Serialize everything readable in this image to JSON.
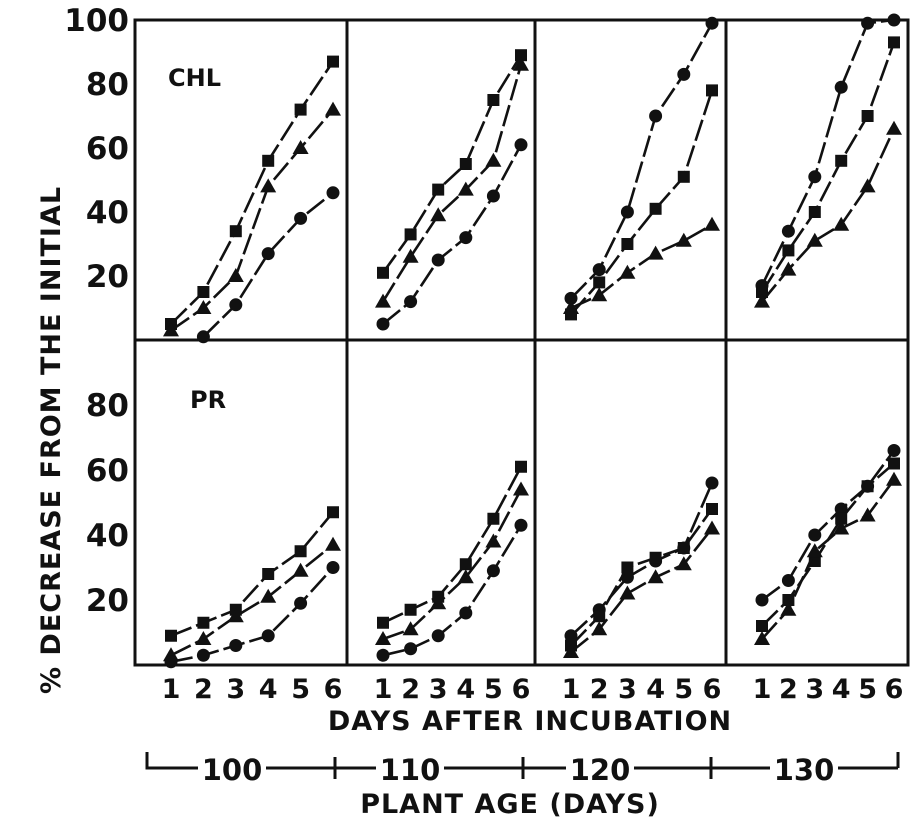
{
  "chart_data": {
    "type": "line",
    "y_axis_label": "% DECREASE FROM THE INITIAL",
    "x_axis_label": "DAYS AFTER INCUBATION",
    "group_axis_label": "PLANT AGE (DAYS)",
    "x_ticks": [
      "1",
      "2",
      "3",
      "4",
      "5",
      "6"
    ],
    "age_groups": [
      "100",
      "110",
      "120",
      "130"
    ],
    "rows": [
      {
        "label": "CHL",
        "ylim": [
          0,
          100
        ],
        "y_ticks": [
          "20",
          "40",
          "60",
          "80",
          "100"
        ],
        "panels": [
          {
            "age": "100",
            "series": [
              {
                "marker": "square",
                "x": [
                  1,
                  2,
                  3,
                  4,
                  5,
                  6
                ],
                "y": [
                  5,
                  15,
                  34,
                  56,
                  72,
                  87
                ]
              },
              {
                "marker": "triangle",
                "x": [
                  1,
                  2,
                  3,
                  4,
                  5,
                  6
                ],
                "y": [
                  3,
                  10,
                  20,
                  48,
                  60,
                  72
                ]
              },
              {
                "marker": "circle",
                "x": [
                  2,
                  3,
                  4,
                  5,
                  6
                ],
                "y": [
                  1,
                  11,
                  27,
                  38,
                  46
                ]
              }
            ]
          },
          {
            "age": "110",
            "series": [
              {
                "marker": "square",
                "x": [
                  1,
                  2,
                  3,
                  4,
                  5,
                  6
                ],
                "y": [
                  21,
                  33,
                  47,
                  55,
                  75,
                  89
                ]
              },
              {
                "marker": "triangle",
                "x": [
                  1,
                  2,
                  3,
                  4,
                  5,
                  6
                ],
                "y": [
                  12,
                  26,
                  39,
                  47,
                  56,
                  86
                ]
              },
              {
                "marker": "circle",
                "x": [
                  1,
                  2,
                  3,
                  4,
                  5,
                  6
                ],
                "y": [
                  5,
                  12,
                  25,
                  32,
                  45,
                  61
                ]
              }
            ]
          },
          {
            "age": "120",
            "series": [
              {
                "marker": "circle",
                "x": [
                  1,
                  2,
                  3,
                  4,
                  5,
                  6
                ],
                "y": [
                  13,
                  22,
                  40,
                  70,
                  83,
                  99
                ]
              },
              {
                "marker": "square",
                "x": [
                  1,
                  2,
                  3,
                  4,
                  5,
                  6
                ],
                "y": [
                  8,
                  18,
                  30,
                  41,
                  51,
                  78
                ]
              },
              {
                "marker": "triangle",
                "x": [
                  1,
                  2,
                  3,
                  4,
                  5,
                  6
                ],
                "y": [
                  10,
                  14,
                  21,
                  27,
                  31,
                  36
                ]
              }
            ]
          },
          {
            "age": "130",
            "series": [
              {
                "marker": "circle",
                "x": [
                  1,
                  2,
                  3,
                  4,
                  5,
                  6
                ],
                "y": [
                  17,
                  34,
                  51,
                  79,
                  99,
                  100
                ]
              },
              {
                "marker": "square",
                "x": [
                  1,
                  2,
                  3,
                  4,
                  5,
                  6
                ],
                "y": [
                  15,
                  28,
                  40,
                  56,
                  70,
                  93
                ]
              },
              {
                "marker": "triangle",
                "x": [
                  1,
                  2,
                  3,
                  4,
                  5,
                  6
                ],
                "y": [
                  12,
                  22,
                  31,
                  36,
                  48,
                  66
                ]
              }
            ]
          }
        ]
      },
      {
        "label": "PR",
        "ylim": [
          0,
          100
        ],
        "y_ticks": [
          "20",
          "40",
          "60",
          "80"
        ],
        "panels": [
          {
            "age": "100",
            "series": [
              {
                "marker": "square",
                "x": [
                  1,
                  2,
                  3,
                  4,
                  5,
                  6
                ],
                "y": [
                  9,
                  13,
                  17,
                  28,
                  35,
                  47
                ]
              },
              {
                "marker": "triangle",
                "x": [
                  1,
                  2,
                  3,
                  4,
                  5,
                  6
                ],
                "y": [
                  3,
                  8,
                  15,
                  21,
                  29,
                  37
                ]
              },
              {
                "marker": "circle",
                "x": [
                  1,
                  2,
                  3,
                  4,
                  5,
                  6
                ],
                "y": [
                  1,
                  3,
                  6,
                  9,
                  19,
                  30
                ]
              }
            ]
          },
          {
            "age": "110",
            "series": [
              {
                "marker": "square",
                "x": [
                  1,
                  2,
                  3,
                  4,
                  5,
                  6
                ],
                "y": [
                  13,
                  17,
                  21,
                  31,
                  45,
                  61
                ]
              },
              {
                "marker": "triangle",
                "x": [
                  1,
                  2,
                  3,
                  4,
                  5,
                  6
                ],
                "y": [
                  8,
                  11,
                  19,
                  27,
                  38,
                  54
                ]
              },
              {
                "marker": "circle",
                "x": [
                  1,
                  2,
                  3,
                  4,
                  5,
                  6
                ],
                "y": [
                  3,
                  5,
                  9,
                  16,
                  29,
                  43
                ]
              }
            ]
          },
          {
            "age": "120",
            "series": [
              {
                "marker": "circle",
                "x": [
                  1,
                  2,
                  3,
                  4,
                  5,
                  6
                ],
                "y": [
                  9,
                  17,
                  27,
                  32,
                  36,
                  56
                ]
              },
              {
                "marker": "square",
                "x": [
                  1,
                  2,
                  3,
                  4,
                  5,
                  6
                ],
                "y": [
                  6,
                  15,
                  30,
                  33,
                  36,
                  48
                ]
              },
              {
                "marker": "triangle",
                "x": [
                  1,
                  2,
                  3,
                  4,
                  5,
                  6
                ],
                "y": [
                  4,
                  11,
                  22,
                  27,
                  31,
                  42
                ]
              }
            ]
          },
          {
            "age": "130",
            "series": [
              {
                "marker": "circle",
                "x": [
                  1,
                  2,
                  3,
                  4,
                  5,
                  6
                ],
                "y": [
                  20,
                  26,
                  40,
                  48,
                  55,
                  66
                ]
              },
              {
                "marker": "square",
                "x": [
                  1,
                  2,
                  3,
                  4,
                  5,
                  6
                ],
                "y": [
                  12,
                  20,
                  32,
                  45,
                  55,
                  62
                ]
              },
              {
                "marker": "triangle",
                "x": [
                  1,
                  2,
                  3,
                  4,
                  5,
                  6
                ],
                "y": [
                  8,
                  17,
                  35,
                  42,
                  46,
                  57
                ]
              }
            ]
          }
        ]
      }
    ]
  }
}
